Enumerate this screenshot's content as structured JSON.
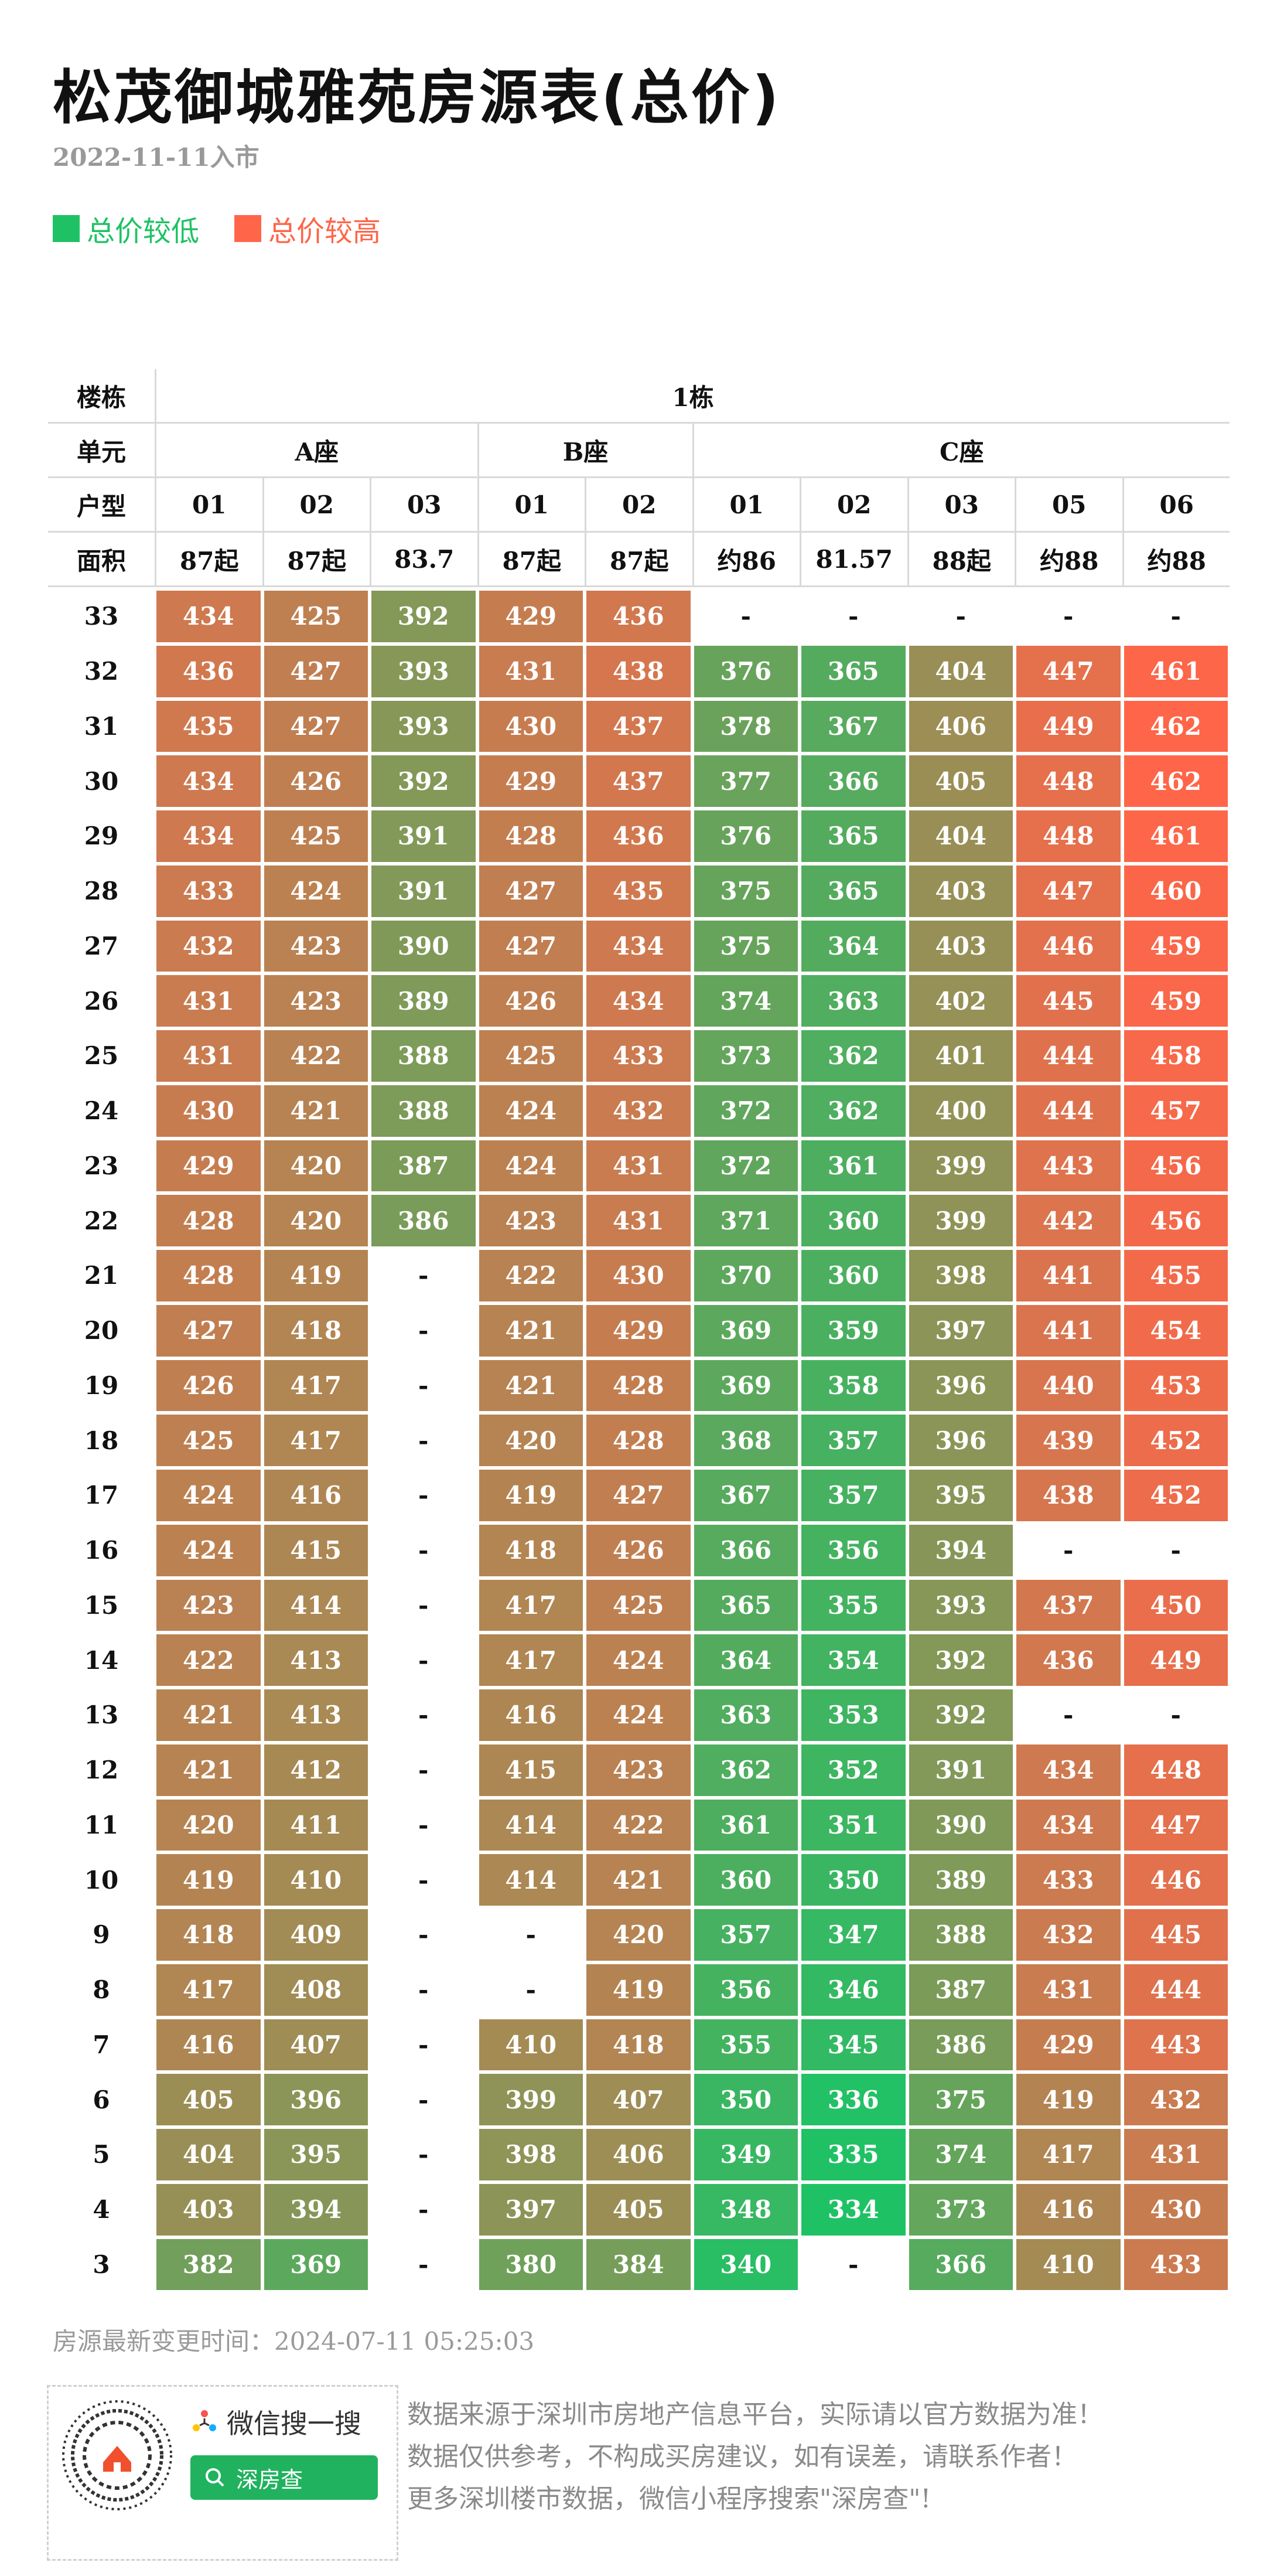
{
  "title": "松茂御城雅苑房源表(总价)",
  "subtitle": "2022-11-11入市",
  "legend": [
    {
      "label": "总价较低",
      "color": "#1ec265"
    },
    {
      "label": "总价较高",
      "color": "#ff6549"
    }
  ],
  "chart_data": {
    "type": "heatmap",
    "row_headers": {
      "building": "楼栋",
      "unit": "单元",
      "type": "户型",
      "area": "面积"
    },
    "building": "1栋",
    "units": [
      {
        "name": "A座",
        "rooms": [
          "01",
          "02",
          "03"
        ],
        "areas": [
          "87起",
          "87起",
          "83.7"
        ]
      },
      {
        "name": "B座",
        "rooms": [
          "01",
          "02"
        ],
        "areas": [
          "87起",
          "87起"
        ]
      },
      {
        "name": "C座",
        "rooms": [
          "01",
          "02",
          "03",
          "05",
          "06"
        ],
        "areas": [
          "约86",
          "81.57",
          "88起",
          "约88",
          "约88"
        ]
      }
    ],
    "floors": [
      "33",
      "32",
      "31",
      "30",
      "29",
      "28",
      "27",
      "26",
      "25",
      "24",
      "23",
      "22",
      "21",
      "20",
      "19",
      "18",
      "17",
      "16",
      "15",
      "14",
      "13",
      "12",
      "11",
      "10",
      "9",
      "8",
      "7",
      "6",
      "5",
      "4",
      "3"
    ],
    "values": [
      [
        434,
        425,
        392,
        429,
        436,
        null,
        null,
        null,
        null,
        null
      ],
      [
        436,
        427,
        393,
        431,
        438,
        376,
        365,
        404,
        447,
        461
      ],
      [
        435,
        427,
        393,
        430,
        437,
        378,
        367,
        406,
        449,
        462
      ],
      [
        434,
        426,
        392,
        429,
        437,
        377,
        366,
        405,
        448,
        462
      ],
      [
        434,
        425,
        391,
        428,
        436,
        376,
        365,
        404,
        448,
        461
      ],
      [
        433,
        424,
        391,
        427,
        435,
        375,
        365,
        403,
        447,
        460
      ],
      [
        432,
        423,
        390,
        427,
        434,
        375,
        364,
        403,
        446,
        459
      ],
      [
        431,
        423,
        389,
        426,
        434,
        374,
        363,
        402,
        445,
        459
      ],
      [
        431,
        422,
        388,
        425,
        433,
        373,
        362,
        401,
        444,
        458
      ],
      [
        430,
        421,
        388,
        424,
        432,
        372,
        362,
        400,
        444,
        457
      ],
      [
        429,
        420,
        387,
        424,
        431,
        372,
        361,
        399,
        443,
        456
      ],
      [
        428,
        420,
        386,
        423,
        431,
        371,
        360,
        399,
        442,
        456
      ],
      [
        428,
        419,
        null,
        422,
        430,
        370,
        360,
        398,
        441,
        455
      ],
      [
        427,
        418,
        null,
        421,
        429,
        369,
        359,
        397,
        441,
        454
      ],
      [
        426,
        417,
        null,
        421,
        428,
        369,
        358,
        396,
        440,
        453
      ],
      [
        425,
        417,
        null,
        420,
        428,
        368,
        357,
        396,
        439,
        452
      ],
      [
        424,
        416,
        null,
        419,
        427,
        367,
        357,
        395,
        438,
        452
      ],
      [
        424,
        415,
        null,
        418,
        426,
        366,
        356,
        394,
        null,
        null
      ],
      [
        423,
        414,
        null,
        417,
        425,
        365,
        355,
        393,
        437,
        450
      ],
      [
        422,
        413,
        null,
        417,
        424,
        364,
        354,
        392,
        436,
        449
      ],
      [
        421,
        413,
        null,
        416,
        424,
        363,
        353,
        392,
        null,
        null
      ],
      [
        421,
        412,
        null,
        415,
        423,
        362,
        352,
        391,
        434,
        448
      ],
      [
        420,
        411,
        null,
        414,
        422,
        361,
        351,
        390,
        434,
        447
      ],
      [
        419,
        410,
        null,
        414,
        421,
        360,
        350,
        389,
        433,
        446
      ],
      [
        418,
        409,
        null,
        null,
        420,
        357,
        347,
        388,
        432,
        445
      ],
      [
        417,
        408,
        null,
        null,
        419,
        356,
        346,
        387,
        431,
        444
      ],
      [
        416,
        407,
        null,
        410,
        418,
        355,
        345,
        386,
        429,
        443
      ],
      [
        405,
        396,
        null,
        399,
        407,
        350,
        336,
        375,
        419,
        432
      ],
      [
        404,
        395,
        null,
        398,
        406,
        349,
        335,
        374,
        417,
        431
      ],
      [
        403,
        394,
        null,
        397,
        405,
        348,
        334,
        373,
        416,
        430
      ],
      [
        382,
        369,
        null,
        380,
        384,
        340,
        null,
        366,
        410,
        433
      ]
    ],
    "missing_label": "-",
    "color_scale": {
      "low": "#1ec265",
      "high": "#ff6549",
      "min": 334,
      "max": 462
    }
  },
  "footer": {
    "update_time": "房源最新变更时间：2024-07-11 05:25:03",
    "wx_search": "微信搜一搜",
    "wx_keyword": "深房查",
    "notes": [
      "数据来源于深圳市房地产信息平台，实际请以官方数据为准！",
      "数据仅供参考，不构成买房建议，如有误差，请联系作者！",
      "更多深圳楼市数据，微信小程序搜索\"深房查\"!"
    ]
  }
}
